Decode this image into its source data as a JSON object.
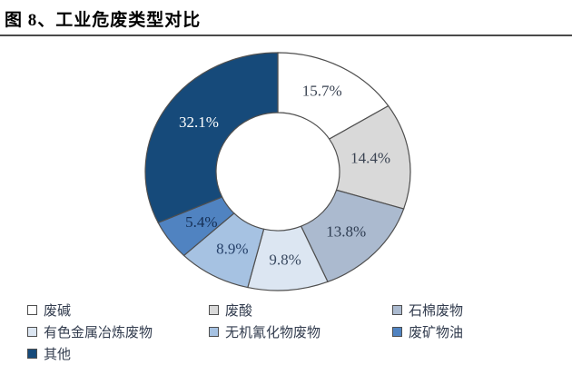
{
  "title": "图 8、工业危废类型对比",
  "chart_data": {
    "type": "pie",
    "subtype": "donut",
    "title": "图 8、工业危废类型对比",
    "start_angle_deg": 0,
    "direction": "clockwise",
    "inner_radius_ratio": 0.47,
    "legend_position": "bottom-left, 3 columns",
    "border_color": "#4f4f4f",
    "slices": [
      {
        "label": "废碱",
        "value": 15.7,
        "display": "15.7%",
        "color": "#ffffff",
        "text_color": "#3a4352"
      },
      {
        "label": "废酸",
        "value": 14.4,
        "display": "14.4%",
        "color": "#d9d9d9",
        "text_color": "#3a4352"
      },
      {
        "label": "石棉废物",
        "value": 13.8,
        "display": "13.8%",
        "color": "#abbacf",
        "text_color": "#2f3d52"
      },
      {
        "label": "有色金属冶炼废物",
        "value": 9.8,
        "display": "9.8%",
        "color": "#dce6f2",
        "text_color": "#3a4a61"
      },
      {
        "label": "无机氰化物废物",
        "value": 8.9,
        "display": "8.9%",
        "color": "#a6c2e2",
        "text_color": "#27426b"
      },
      {
        "label": "废矿物油",
        "value": 5.4,
        "display": "5.4%",
        "color": "#5083c1",
        "text_color": "#152f55"
      },
      {
        "label": "其他",
        "value": 32.1,
        "display": "32.1%",
        "color": "#164a7a",
        "text_color": "#ffffff"
      }
    ]
  }
}
